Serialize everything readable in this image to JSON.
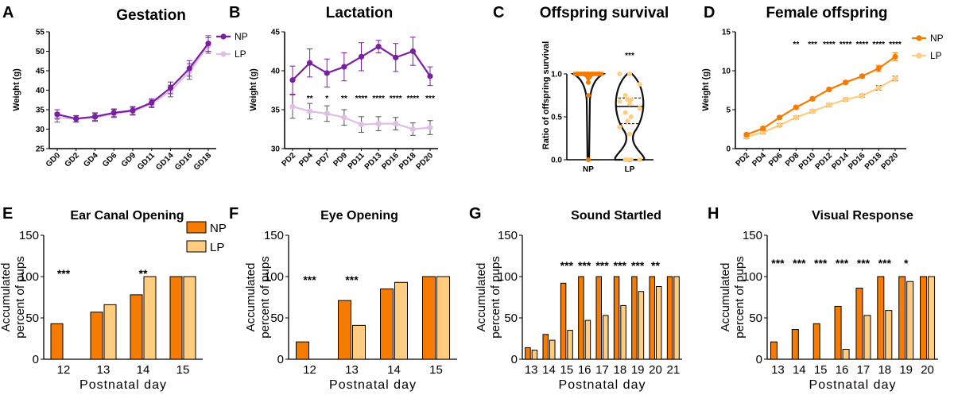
{
  "colors": {
    "np_purple": "#7b1fa2",
    "lp_purple": "#e1bee7",
    "np_orange": "#f57c00",
    "lp_orange": "#ffcc80",
    "axis": "#000000"
  },
  "chart_data": [
    {
      "id": "A",
      "type": "line",
      "title": "Gestation",
      "ylabel": "Weight (g)",
      "categories": [
        "GD0",
        "GD2",
        "GD4",
        "GD6",
        "GD9",
        "GD11",
        "GD14",
        "GD16",
        "GD18"
      ],
      "ylim": [
        25,
        55
      ],
      "yticks": [
        25,
        30,
        35,
        40,
        45,
        50,
        55
      ],
      "series": [
        {
          "name": "NP",
          "values": [
            33.8,
            32.7,
            33.2,
            34.2,
            34.8,
            36.8,
            40.6,
            45.6,
            52.0
          ],
          "err": [
            1.2,
            0.8,
            1.0,
            1.0,
            1.0,
            1.0,
            1.5,
            2.0,
            2.0
          ]
        },
        {
          "name": "LP",
          "values": [
            33.0,
            32.6,
            33.0,
            34.0,
            34.6,
            36.5,
            39.8,
            44.8,
            51.5
          ],
          "err": [
            1.2,
            0.8,
            1.0,
            1.0,
            1.0,
            1.0,
            1.5,
            2.0,
            2.0
          ]
        }
      ],
      "legend": [
        "NP",
        "LP"
      ],
      "legend_position": "top-right",
      "significance": []
    },
    {
      "id": "B",
      "type": "line",
      "title": "Lactation",
      "ylabel": "Weight (g)",
      "categories": [
        "PD2",
        "PD4",
        "PD7",
        "PD9",
        "PD11",
        "PD13",
        "PD16",
        "PD18",
        "PD20"
      ],
      "ylim": [
        30,
        45
      ],
      "yticks": [
        30,
        35,
        40,
        45
      ],
      "series": [
        {
          "name": "NP",
          "values": [
            38.8,
            41.0,
            39.7,
            40.5,
            41.8,
            43.1,
            41.7,
            42.5,
            39.3
          ],
          "err": [
            1.8,
            1.8,
            1.8,
            1.8,
            1.8,
            0.8,
            1.8,
            1.8,
            1.2
          ]
        },
        {
          "name": "LP",
          "values": [
            35.4,
            34.8,
            34.5,
            34.0,
            33.1,
            33.2,
            33.2,
            32.5,
            32.7
          ],
          "err": [
            1.5,
            1.0,
            1.0,
            1.0,
            1.0,
            0.9,
            0.8,
            0.8,
            0.9
          ]
        }
      ],
      "significance": [
        "",
        "**",
        "*",
        "**",
        "****",
        "****",
        "****",
        "****",
        "***"
      ]
    },
    {
      "id": "C",
      "type": "violin",
      "title": "Offspring survival",
      "ylabel": "Ratio of offspring survival",
      "categories": [
        "NP",
        "LP"
      ],
      "ylim": [
        0.0,
        1.0
      ],
      "yticks": [
        0.0,
        0.5,
        1.0
      ],
      "series": [
        {
          "name": "NP",
          "values": [
            1.0,
            1.0,
            1.0,
            1.0,
            1.0,
            1.0,
            1.0,
            1.0,
            1.0,
            1.0,
            1.0,
            0.98,
            0.97,
            0.95,
            0.9,
            0.75,
            0.0
          ]
        },
        {
          "name": "LP",
          "values": [
            1.0,
            1.0,
            0.88,
            0.75,
            0.7,
            0.7,
            0.68,
            0.65,
            0.6,
            0.55,
            0.5,
            0.45,
            0.38,
            0.3,
            0.0,
            0.0,
            0.0,
            0.0
          ]
        }
      ],
      "significance": "***"
    },
    {
      "id": "D",
      "type": "line",
      "title": "Female offspring",
      "ylabel": "Weight (g)",
      "categories": [
        "PD2",
        "PD4",
        "PD6",
        "PD8",
        "PD10",
        "PD12",
        "PD14",
        "PD16",
        "PD18",
        "PD20"
      ],
      "ylim": [
        0,
        15
      ],
      "yticks": [
        0,
        5,
        10,
        15
      ],
      "series": [
        {
          "name": "NP",
          "values": [
            1.8,
            2.6,
            4.0,
            5.3,
            6.4,
            7.6,
            8.5,
            9.3,
            10.3,
            11.8
          ],
          "err": [
            0.2,
            0.2,
            0.2,
            0.2,
            0.2,
            0.2,
            0.2,
            0.2,
            0.4,
            0.5
          ]
        },
        {
          "name": "LP",
          "values": [
            1.5,
            2.1,
            3.0,
            4.0,
            4.8,
            5.6,
            6.3,
            6.8,
            7.8,
            9.0
          ],
          "err": [
            0.2,
            0.2,
            0.2,
            0.2,
            0.2,
            0.2,
            0.2,
            0.2,
            0.3,
            0.3
          ]
        }
      ],
      "legend": [
        "NP",
        "LP"
      ],
      "legend_position": "top-right",
      "significance": [
        "",
        "",
        "",
        "**",
        "***",
        "****",
        "****",
        "****",
        "****",
        "****"
      ]
    },
    {
      "id": "E",
      "type": "bar",
      "title": "Ear Canal Opening",
      "ylabel": "Accumulated percent of pups",
      "xlabel": "Postnatal day",
      "categories": [
        "12",
        "13",
        "14",
        "15"
      ],
      "ylim": [
        0,
        150
      ],
      "yticks": [
        0,
        50,
        100,
        150
      ],
      "series": [
        {
          "name": "NP",
          "values": [
            43,
            57,
            78,
            100
          ]
        },
        {
          "name": "LP",
          "values": [
            0,
            66,
            100,
            100
          ]
        }
      ],
      "legend": [
        "NP",
        "LP"
      ],
      "legend_position": "top-right",
      "significance": [
        "***",
        "",
        "**",
        ""
      ]
    },
    {
      "id": "F",
      "type": "bar",
      "title": "Eye Opening",
      "ylabel": "Accumulated percent of pups",
      "xlabel": "Postnatal day",
      "categories": [
        "12",
        "13",
        "14",
        "15"
      ],
      "ylim": [
        0,
        150
      ],
      "yticks": [
        0,
        50,
        100,
        150
      ],
      "series": [
        {
          "name": "NP",
          "values": [
            21,
            71,
            85,
            100
          ]
        },
        {
          "name": "LP",
          "values": [
            0,
            41,
            93,
            100
          ]
        }
      ],
      "significance": [
        "***",
        "***",
        "",
        ""
      ]
    },
    {
      "id": "G",
      "type": "bar",
      "title": "Sound Startled",
      "ylabel": "Accumulated percent of pups",
      "xlabel": "Postnatal day",
      "categories": [
        "13",
        "14",
        "15",
        "16",
        "17",
        "18",
        "19",
        "20",
        "21"
      ],
      "ylim": [
        0,
        150
      ],
      "yticks": [
        0,
        50,
        100,
        150
      ],
      "series": [
        {
          "name": "NP",
          "values": [
            14,
            30,
            92,
            100,
            100,
            100,
            100,
            100,
            100
          ]
        },
        {
          "name": "LP",
          "values": [
            11,
            23,
            35,
            47,
            53,
            65,
            82,
            88,
            100
          ]
        }
      ],
      "significance": [
        "",
        "",
        "***",
        "***",
        "***",
        "***",
        "***",
        "**",
        ""
      ]
    },
    {
      "id": "H",
      "type": "bar",
      "title": "Visual Response",
      "ylabel": "Accumulated percent of pups",
      "xlabel": "Postnatal day",
      "categories": [
        "13",
        "14",
        "15",
        "16",
        "17",
        "18",
        "19",
        "20"
      ],
      "ylim": [
        0,
        150
      ],
      "yticks": [
        0,
        50,
        100,
        150
      ],
      "series": [
        {
          "name": "NP",
          "values": [
            21,
            36,
            43,
            64,
            86,
            100,
            100,
            100
          ]
        },
        {
          "name": "LP",
          "values": [
            0,
            0,
            0,
            12,
            53,
            59,
            94,
            100
          ]
        }
      ],
      "significance": [
        "***",
        "***",
        "***",
        "***",
        "***",
        "***",
        "*",
        ""
      ]
    }
  ],
  "panel_letters": [
    "A",
    "B",
    "C",
    "D",
    "E",
    "F",
    "G",
    "H"
  ]
}
